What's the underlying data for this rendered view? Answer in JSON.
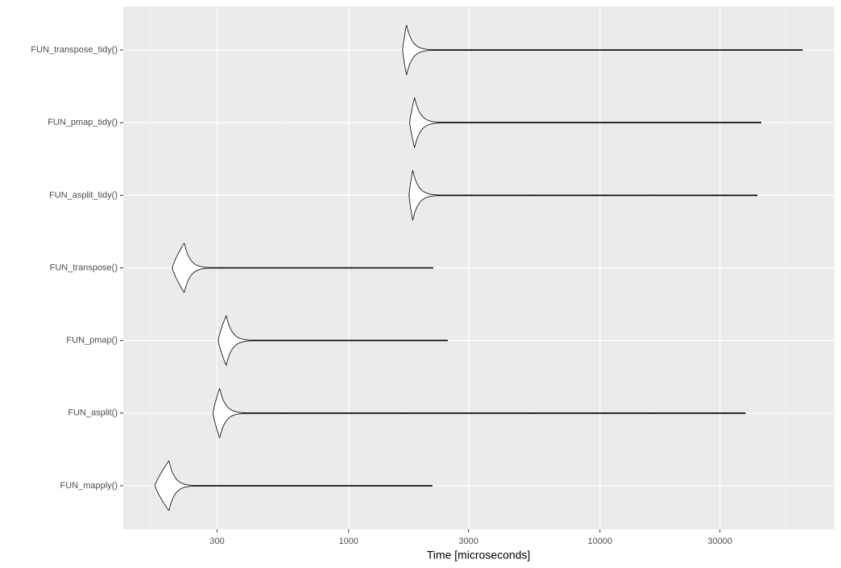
{
  "chart_data": {
    "type": "violin",
    "x_label": "Time [microseconds]",
    "categories": [
      "FUN_transpose_tidy()",
      "FUN_pmap_tidy()",
      "FUN_asplit_tidy()",
      "FUN_transpose()",
      "FUN_pmap()",
      "FUN_asplit()",
      "FUN_mapply()"
    ],
    "min": [
      1640,
      1750,
      1740,
      199,
      303,
      289,
      170
    ],
    "mode": [
      1700,
      1830,
      1800,
      222,
      326,
      307,
      193
    ],
    "max": [
      63700,
      43700,
      42200,
      2170,
      2480,
      37800,
      2150
    ],
    "xlim": [
      127,
      85700
    ],
    "xticks": [
      300,
      1000,
      3000,
      10000,
      30000
    ],
    "minor_xticks": [
      164.3,
      547.7,
      1643,
      5477,
      16432,
      54772
    ],
    "log_x": true,
    "grid": true,
    "fill": "#ffffff",
    "stroke": "#000000"
  }
}
